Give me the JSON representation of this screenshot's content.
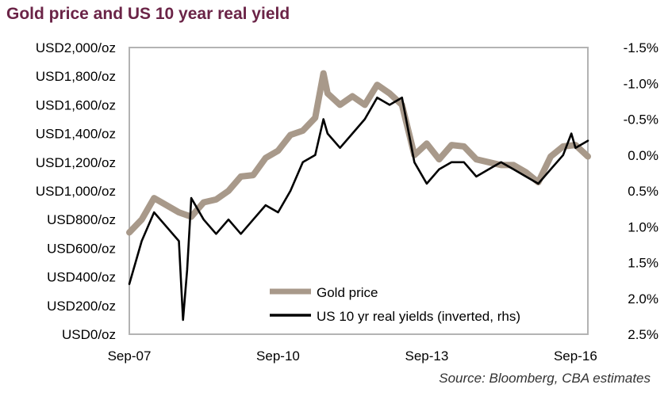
{
  "header": {
    "title": "Gold price and US 10 year real yield"
  },
  "source": "Source: Bloomberg, CBA estimates",
  "colors": {
    "gold": "#a8998a",
    "yield": "#000000",
    "axis": "#b3b3b3",
    "title": "#6b2447"
  },
  "chart_data": {
    "type": "line",
    "title": "Gold price and US 10 year real yield",
    "x_ticks": [
      "Sep-07",
      "Sep-10",
      "Sep-13",
      "Sep-16"
    ],
    "xlim": [
      "Sep-07",
      "Dec-16"
    ],
    "y_left": {
      "ticks": [
        "USD0/oz",
        "USD200/oz",
        "USD400/oz",
        "USD600/oz",
        "USD800/oz",
        "USD1,000/oz",
        "USD1,200/oz",
        "USD1,400/oz",
        "USD1,600/oz",
        "USD1,800/oz",
        "USD2,000/oz"
      ],
      "ylim": [
        0,
        2000
      ]
    },
    "y_right": {
      "ticks": [
        "-1.5%",
        "-1.0%",
        "-0.5%",
        "0.0%",
        "0.5%",
        "1.0%",
        "1.5%",
        "2.0%",
        "2.5%"
      ],
      "ylim": [
        -1.5,
        2.5
      ],
      "inverted": true
    },
    "legend": {
      "placement": "bottom-right"
    },
    "grid": false,
    "series": [
      {
        "name": "Gold price",
        "axis": "left",
        "x": [
          "Sep-07",
          "Dec-07",
          "Mar-08",
          "Jun-08",
          "Sep-08",
          "Dec-08",
          "Mar-09",
          "Jun-09",
          "Sep-09",
          "Dec-09",
          "Mar-10",
          "Jun-10",
          "Sep-10",
          "Dec-10",
          "Mar-11",
          "Jun-11",
          "Aug-11",
          "Sep-11",
          "Dec-11",
          "Mar-12",
          "Jun-12",
          "Sep-12",
          "Dec-12",
          "Mar-13",
          "Jun-13",
          "Sep-13",
          "Dec-13",
          "Mar-14",
          "Jun-14",
          "Sep-14",
          "Dec-14",
          "Mar-15",
          "Jun-15",
          "Sep-15",
          "Dec-15",
          "Mar-16",
          "Jun-16",
          "Sep-16",
          "Dec-16"
        ],
        "values": [
          710,
          800,
          950,
          900,
          850,
          820,
          920,
          940,
          1000,
          1100,
          1110,
          1230,
          1280,
          1390,
          1420,
          1510,
          1820,
          1680,
          1600,
          1660,
          1600,
          1740,
          1680,
          1600,
          1250,
          1330,
          1220,
          1320,
          1310,
          1220,
          1200,
          1180,
          1180,
          1130,
          1060,
          1240,
          1310,
          1320,
          1240
        ]
      },
      {
        "name": "US 10 yr real yields (inverted, rhs)",
        "axis": "right",
        "x": [
          "Sep-07",
          "Dec-07",
          "Mar-08",
          "Jun-08",
          "Sep-08",
          "Oct-08",
          "Nov-08",
          "Dec-08",
          "Mar-09",
          "Jun-09",
          "Sep-09",
          "Dec-09",
          "Mar-10",
          "Jun-10",
          "Sep-10",
          "Dec-10",
          "Mar-11",
          "Jun-11",
          "Aug-11",
          "Sep-11",
          "Dec-11",
          "Mar-12",
          "Jun-12",
          "Sep-12",
          "Dec-12",
          "Mar-13",
          "Jun-13",
          "Sep-13",
          "Dec-13",
          "Mar-14",
          "Jun-14",
          "Sep-14",
          "Dec-14",
          "Mar-15",
          "Jun-15",
          "Sep-15",
          "Dec-15",
          "Mar-16",
          "Jun-16",
          "Aug-16",
          "Sep-16",
          "Dec-16"
        ],
        "values": [
          1.8,
          1.2,
          0.8,
          1.0,
          1.2,
          2.3,
          1.6,
          0.6,
          0.9,
          1.1,
          0.9,
          1.1,
          0.9,
          0.7,
          0.8,
          0.5,
          0.1,
          0.0,
          -0.5,
          -0.3,
          -0.1,
          -0.3,
          -0.5,
          -0.8,
          -0.7,
          -0.8,
          0.1,
          0.4,
          0.2,
          0.1,
          0.1,
          0.3,
          0.2,
          0.1,
          0.2,
          0.3,
          0.4,
          0.2,
          0.0,
          -0.3,
          -0.1,
          -0.2
        ]
      }
    ]
  }
}
